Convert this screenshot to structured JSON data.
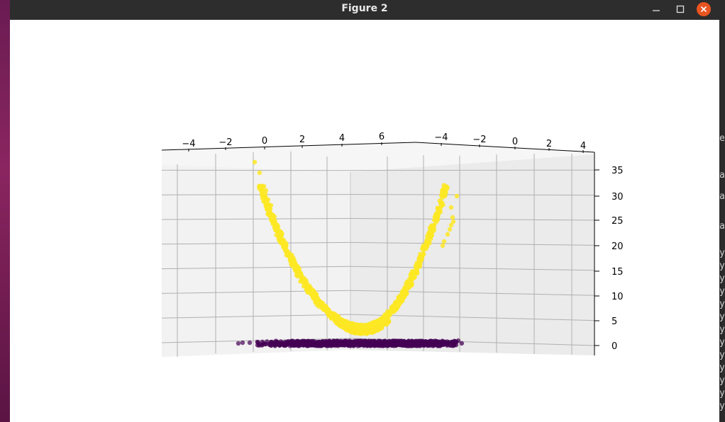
{
  "window": {
    "title": "Figure 2"
  },
  "icons": {
    "minimize": "minimize-icon",
    "maximize": "maximize-icon",
    "close": "close-icon"
  },
  "colors": {
    "titlebar": "#2d2d2d",
    "close_button": "#e95420",
    "class_high": "#fde725",
    "class_low": "#440154",
    "pane_left": "#f2f2f2",
    "pane_right": "#ebebeb",
    "grid": "#b0b0b0"
  },
  "background_terminal_fragments": [
    "e",
    "a",
    "a",
    "a",
    "y",
    "y",
    "y",
    "y",
    "y",
    "y",
    "y",
    "y",
    "y",
    "y",
    "y",
    "y",
    "y"
  ],
  "chart_data": {
    "type": "scatter",
    "projection": "3d",
    "title": "",
    "xlabel": "",
    "ylabel": "",
    "zlabel": "",
    "x_ticks": [
      "−4",
      "−2",
      "0",
      "2",
      "4",
      "6"
    ],
    "y_ticks": [
      "−4",
      "−2",
      "0",
      "2",
      "4"
    ],
    "z_ticks": [
      "0",
      "5",
      "10",
      "15",
      "20",
      "25",
      "30",
      "35"
    ],
    "zlim": [
      0,
      37
    ],
    "grid": true,
    "series": [
      {
        "color": "#fde725",
        "description_type": "parabola z = x^2 + y^2 (outer ring lifted)",
        "x_range": [
          -4.2,
          4.2
        ],
        "z_range": [
          1,
          35.5
        ],
        "shape": "parabola"
      },
      {
        "color": "#440154",
        "description_type": "inner cluster at z = 0",
        "x_range": [
          -4.2,
          4.2
        ],
        "z_range": [
          0,
          0.3
        ],
        "shape": "flat"
      }
    ]
  }
}
